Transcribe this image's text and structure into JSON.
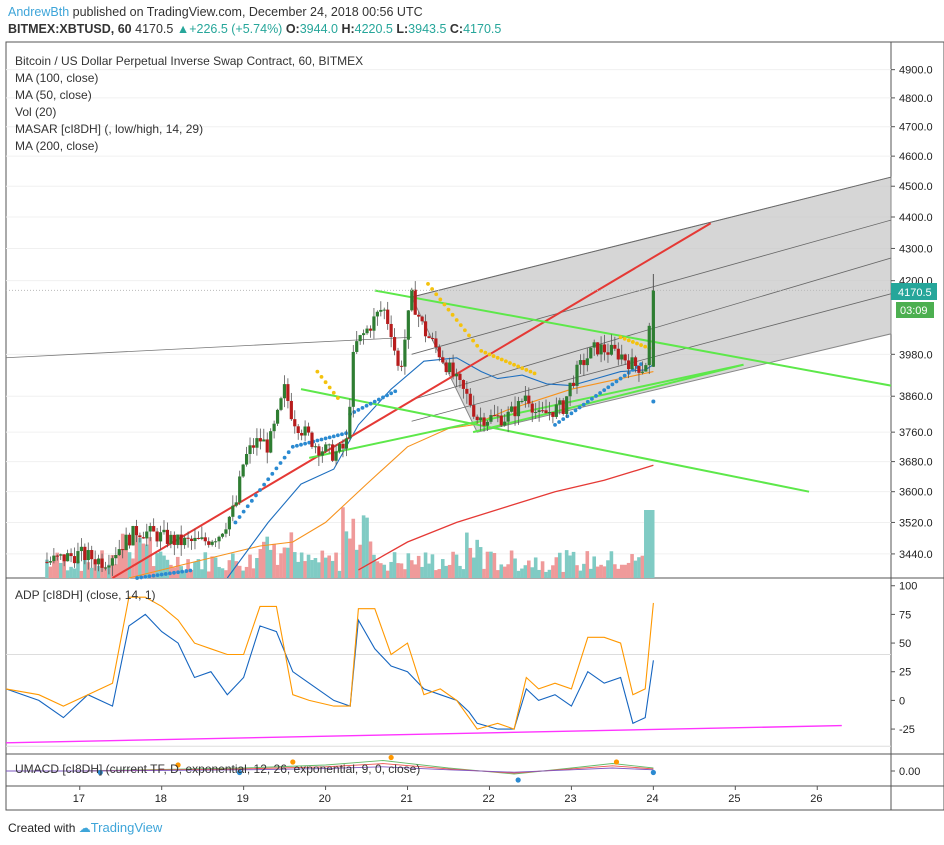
{
  "header": {
    "user": "AndrewBth",
    "published": "published on TradingView.com, December 24, 2018 00:56 UTC",
    "symbol": "BITMEX:XBTUSD, 60",
    "last": "4170.5",
    "change": "+226.5 (+5.74%)",
    "o_label": "O:",
    "o": "3944.0",
    "h_label": "H:",
    "h": "4220.5",
    "l_label": "L:",
    "l": "3943.5",
    "c_label": "C:",
    "c": "4170.5"
  },
  "legend": {
    "title": "Bitcoin / US Dollar Perpetual Inverse Swap Contract, 60, BITMEX",
    "items": [
      "MA (100, close)",
      "MA (50, close)",
      "Vol (20)",
      "MASAR [cI8DH] (, low/high, 14, 29)",
      "MA (200, close)"
    ]
  },
  "price_badge": {
    "price": "4170.5",
    "timer": "03:09"
  },
  "adp_label": "ADP [cI8DH] (close, 14, 1)",
  "umacd_label": "UMACD [cI8DH] (current TF, D, exponential, 12, 26, exponential, 9, 0, close)",
  "footer": {
    "created": "Created with",
    "brand": "TradingView"
  },
  "colors": {
    "up": "#26a69a",
    "down": "#ef5350",
    "candle_body_up": "#2e7d32",
    "candle_body_down": "#b71c1c",
    "ma100": "#f7931e",
    "ma50": "#1e6fbf",
    "ma200": "#e53935",
    "sar": "#2b8ad1",
    "adp_main": "#1565c0",
    "adp_signal": "#ff9800",
    "trend_green": "#5de84a",
    "trend_red": "#e53935",
    "magenta": "#ff33ff",
    "channel": "#c8c8c8"
  },
  "chart_data": [
    {
      "type": "candlestick",
      "title": "Bitcoin / US Dollar Perpetual Inverse Swap Contract, 60, BITMEX",
      "x_tick_labels": [
        "17",
        "18",
        "19",
        "20",
        "21",
        "22",
        "23",
        "24",
        "25",
        "26"
      ],
      "y_tick_labels": [
        "4900.0",
        "4800.0",
        "4700.0",
        "4600.0",
        "4500.0",
        "4400.0",
        "4300.0",
        "4200.0",
        "3980.0",
        "3860.0",
        "3760.0",
        "3680.0",
        "3600.0",
        "3520.0",
        "3440.0"
      ],
      "y_scale": "log",
      "ylim": [
        3380,
        5000
      ],
      "xlim": [
        16.1,
        26.9
      ],
      "price_path": [
        [
          16.6,
          3420
        ],
        [
          17.0,
          3440
        ],
        [
          17.3,
          3420
        ],
        [
          17.5,
          3460
        ],
        [
          17.7,
          3500
        ],
        [
          17.9,
          3490
        ],
        [
          18.2,
          3470
        ],
        [
          18.5,
          3470
        ],
        [
          18.7,
          3490
        ],
        [
          18.9,
          3560
        ],
        [
          19.0,
          3680
        ],
        [
          19.1,
          3720
        ],
        [
          19.2,
          3740
        ],
        [
          19.3,
          3720
        ],
        [
          19.4,
          3790
        ],
        [
          19.5,
          3880
        ],
        [
          19.6,
          3800
        ],
        [
          19.7,
          3770
        ],
        [
          19.9,
          3720
        ],
        [
          20.1,
          3700
        ],
        [
          20.25,
          3720
        ],
        [
          20.35,
          4000
        ],
        [
          20.5,
          4050
        ],
        [
          20.7,
          4120
        ],
        [
          20.8,
          4050
        ],
        [
          20.9,
          3920
        ],
        [
          21.05,
          4150
        ],
        [
          21.2,
          4050
        ],
        [
          21.4,
          3980
        ],
        [
          21.6,
          3900
        ],
        [
          21.75,
          3850
        ],
        [
          21.85,
          3800
        ],
        [
          22.0,
          3800
        ],
        [
          22.2,
          3800
        ],
        [
          22.35,
          3830
        ],
        [
          22.45,
          3870
        ],
        [
          22.6,
          3800
        ],
        [
          22.75,
          3820
        ],
        [
          22.9,
          3830
        ],
        [
          23.0,
          3900
        ],
        [
          23.15,
          3960
        ],
        [
          23.3,
          4000
        ],
        [
          23.45,
          3990
        ],
        [
          23.6,
          3980
        ],
        [
          23.75,
          3950
        ],
        [
          23.9,
          3940
        ],
        [
          24.0,
          4170
        ]
      ],
      "series": [
        {
          "name": "MA (100, close)",
          "points": [
            [
              17.6,
              3380
            ],
            [
              18.2,
              3410
            ],
            [
              18.8,
              3440
            ],
            [
              19.2,
              3460
            ],
            [
              19.6,
              3470
            ],
            [
              20.0,
              3520
            ],
            [
              20.5,
              3620
            ],
            [
              21.0,
              3720
            ],
            [
              21.5,
              3770
            ],
            [
              21.8,
              3780
            ],
            [
              22.2,
              3820
            ],
            [
              22.6,
              3850
            ],
            [
              23.0,
              3880
            ],
            [
              23.4,
              3900
            ],
            [
              23.8,
              3920
            ],
            [
              24.0,
              3930
            ]
          ]
        },
        {
          "name": "MA (50, close)",
          "points": [
            [
              18.8,
              3380
            ],
            [
              19.3,
              3520
            ],
            [
              19.7,
              3620
            ],
            [
              20.1,
              3660
            ],
            [
              20.4,
              3780
            ],
            [
              20.8,
              3880
            ],
            [
              21.2,
              3960
            ],
            [
              21.6,
              3970
            ],
            [
              21.9,
              3930
            ],
            [
              22.1,
              3910
            ],
            [
              22.4,
              3920
            ],
            [
              22.7,
              3895
            ],
            [
              23.0,
              3890
            ],
            [
              23.3,
              3910
            ],
            [
              23.6,
              3930
            ],
            [
              23.9,
              3935
            ],
            [
              24.0,
              3950
            ]
          ]
        },
        {
          "name": "MA (200, close)",
          "points": [
            [
              20.4,
              3400
            ],
            [
              21.0,
              3470
            ],
            [
              21.6,
              3520
            ],
            [
              22.2,
              3560
            ],
            [
              22.8,
              3600
            ],
            [
              23.4,
              3630
            ],
            [
              24.0,
              3670
            ]
          ]
        }
      ],
      "trend_lines": [
        {
          "color": "red",
          "from": [
            17.4,
            3380
          ],
          "to": [
            24.7,
            4380
          ]
        },
        {
          "color": "green",
          "from": [
            20.6,
            4170
          ],
          "to": [
            26.9,
            3890
          ]
        },
        {
          "color": "green",
          "from": [
            19.7,
            3880
          ],
          "to": [
            25.9,
            3600
          ]
        },
        {
          "color": "green",
          "from": [
            19.8,
            3690
          ],
          "to": [
            25.1,
            3950
          ]
        },
        {
          "color": "green",
          "from": [
            21.8,
            3760
          ],
          "to": [
            25.1,
            3950
          ]
        }
      ]
    },
    {
      "type": "line",
      "title": "ADP [cI8DH] (close, 14, 1)",
      "y_tick_labels": [
        "100",
        "75",
        "50",
        "25",
        "0",
        "-25"
      ],
      "ylim": [
        -45,
        105
      ],
      "x_tick_labels": [
        "17",
        "18",
        "19",
        "20",
        "21",
        "22",
        "23",
        "24",
        "25",
        "26"
      ],
      "series": [
        {
          "name": "main",
          "points": [
            [
              16.1,
              10
            ],
            [
              16.5,
              0
            ],
            [
              16.8,
              -15
            ],
            [
              17.1,
              5
            ],
            [
              17.4,
              -5
            ],
            [
              17.6,
              65
            ],
            [
              17.8,
              75
            ],
            [
              18.0,
              60
            ],
            [
              18.2,
              50
            ],
            [
              18.4,
              20
            ],
            [
              18.6,
              25
            ],
            [
              18.8,
              5
            ],
            [
              19.0,
              20
            ],
            [
              19.2,
              65
            ],
            [
              19.4,
              60
            ],
            [
              19.6,
              25
            ],
            [
              19.8,
              15
            ],
            [
              20.1,
              0
            ],
            [
              20.3,
              -5
            ],
            [
              20.4,
              70
            ],
            [
              20.6,
              45
            ],
            [
              20.8,
              30
            ],
            [
              21.0,
              25
            ],
            [
              21.2,
              10
            ],
            [
              21.4,
              5
            ],
            [
              21.6,
              0
            ],
            [
              21.75,
              -10
            ],
            [
              21.85,
              -20
            ],
            [
              22.1,
              -25
            ],
            [
              22.3,
              -25
            ],
            [
              22.45,
              10
            ],
            [
              22.6,
              0
            ],
            [
              22.8,
              5
            ],
            [
              23.0,
              -5
            ],
            [
              23.2,
              25
            ],
            [
              23.4,
              15
            ],
            [
              23.6,
              20
            ],
            [
              23.75,
              -20
            ],
            [
              23.9,
              -15
            ],
            [
              24.0,
              35
            ]
          ]
        },
        {
          "name": "signal",
          "points": [
            [
              16.1,
              10
            ],
            [
              16.5,
              5
            ],
            [
              16.8,
              -5
            ],
            [
              17.1,
              5
            ],
            [
              17.4,
              15
            ],
            [
              17.6,
              90
            ],
            [
              17.8,
              90
            ],
            [
              18.0,
              82
            ],
            [
              18.2,
              70
            ],
            [
              18.4,
              50
            ],
            [
              18.6,
              45
            ],
            [
              18.8,
              40
            ],
            [
              19.0,
              40
            ],
            [
              19.2,
              82
            ],
            [
              19.4,
              82
            ],
            [
              19.6,
              5
            ],
            [
              19.8,
              0
            ],
            [
              20.1,
              -5
            ],
            [
              20.3,
              -5
            ],
            [
              20.4,
              80
            ],
            [
              20.6,
              80
            ],
            [
              20.8,
              40
            ],
            [
              21.0,
              50
            ],
            [
              21.2,
              5
            ],
            [
              21.4,
              10
            ],
            [
              21.6,
              0
            ],
            [
              21.75,
              -15
            ],
            [
              21.85,
              -25
            ],
            [
              22.1,
              -20
            ],
            [
              22.3,
              -25
            ],
            [
              22.45,
              20
            ],
            [
              22.6,
              10
            ],
            [
              22.8,
              15
            ],
            [
              23.0,
              10
            ],
            [
              23.2,
              55
            ],
            [
              23.4,
              55
            ],
            [
              23.6,
              50
            ],
            [
              23.75,
              5
            ],
            [
              23.9,
              10
            ],
            [
              24.0,
              85
            ]
          ]
        },
        {
          "name": "trend",
          "points": [
            [
              16.1,
              -37
            ],
            [
              26.3,
              -22
            ]
          ]
        }
      ]
    },
    {
      "type": "line",
      "title": "UMACD [cI8DH] (current TF, D, exponential, 12, 26, exponential, 9, 0, close)",
      "y_tick_labels": [
        "0.00"
      ],
      "ylim": [
        -1,
        1
      ],
      "series": [
        {
          "name": "macd",
          "points": [
            [
              16.1,
              0
            ],
            [
              17.0,
              0
            ],
            [
              18.0,
              0.1
            ],
            [
              19.0,
              0.2
            ],
            [
              20.0,
              0.4
            ],
            [
              20.7,
              0.7
            ],
            [
              21.5,
              0.2
            ],
            [
              22.3,
              -0.2
            ],
            [
              23.0,
              0.2
            ],
            [
              23.5,
              0.5
            ],
            [
              24.0,
              0.2
            ]
          ]
        }
      ]
    }
  ]
}
